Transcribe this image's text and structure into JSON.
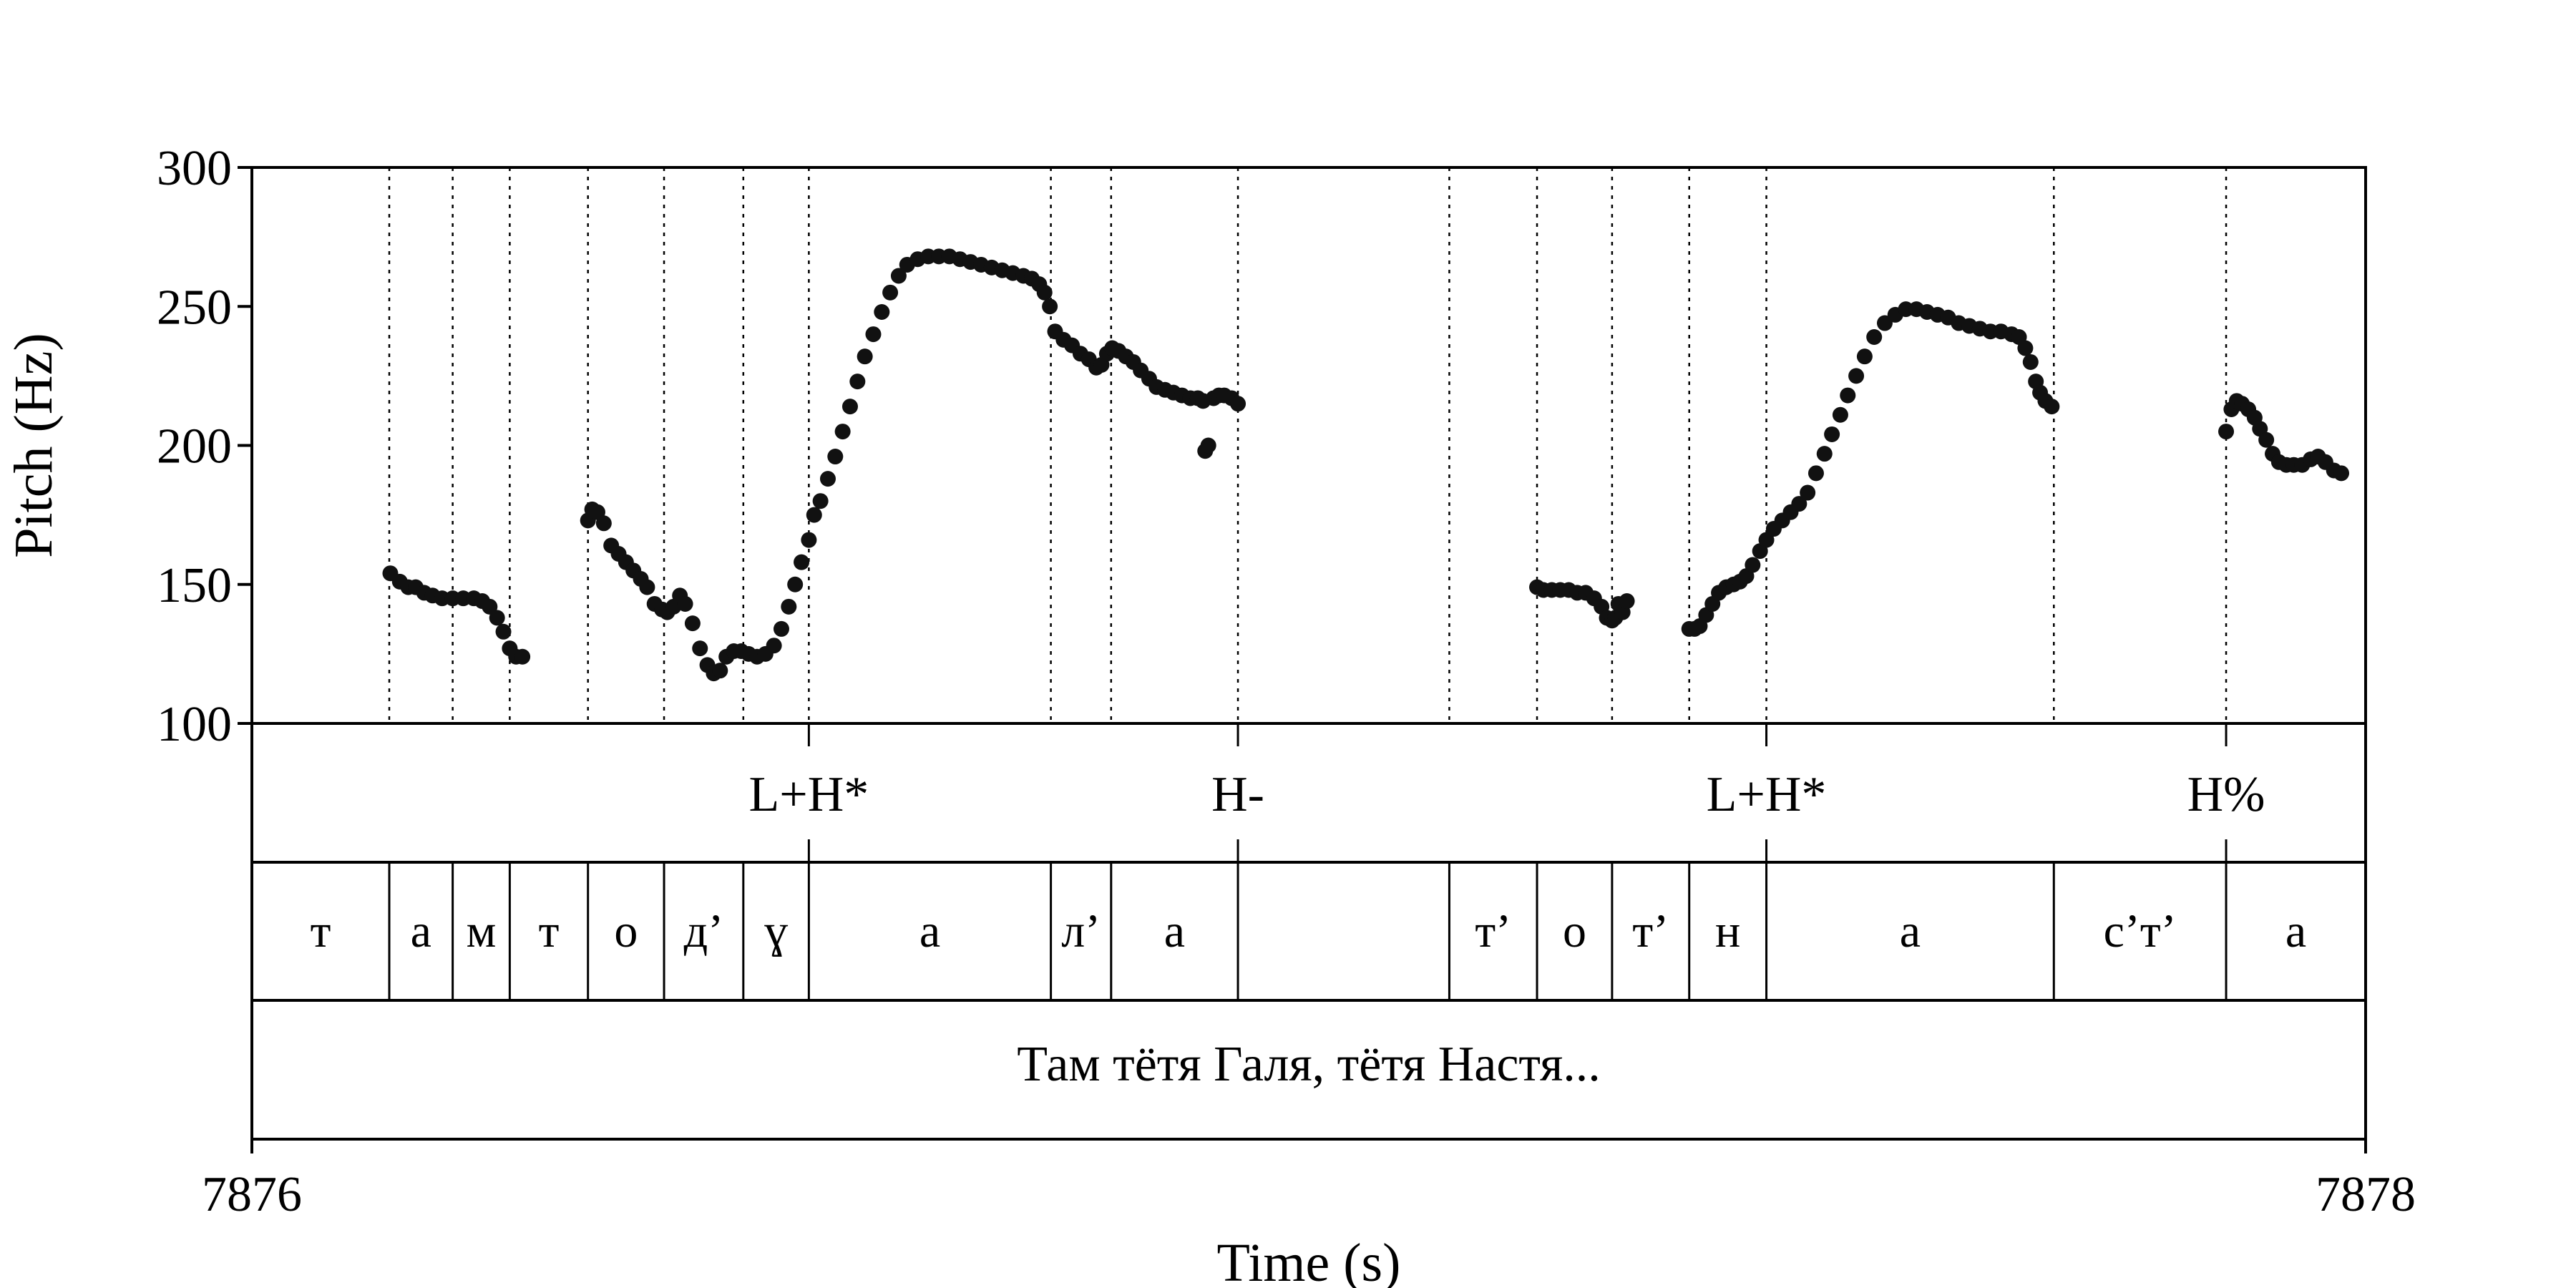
{
  "chart_data": {
    "type": "scatter",
    "ylabel": "Pitch (Hz)",
    "xlabel": "Time (s)",
    "ylim": [
      100,
      300
    ],
    "yticks": [
      100,
      150,
      200,
      250,
      300
    ],
    "xlim": [
      7876,
      7878
    ],
    "xticks": [
      7876,
      7878
    ],
    "grid": false,
    "boundaries": [
      7876.13,
      7876.19,
      7876.244,
      7876.318,
      7876.39,
      7876.465,
      7876.527,
      7876.756,
      7876.813,
      7876.933,
      7877.133,
      7877.216,
      7877.287,
      7877.36,
      7877.433,
      7877.705,
      7877.868
    ],
    "tones": [
      {
        "label": "L+H*",
        "x": 7876.527
      },
      {
        "label": "H-",
        "x": 7876.933
      },
      {
        "label": "L+H*",
        "x": 7877.433
      },
      {
        "label": "H%",
        "x": 7877.868
      }
    ],
    "segments": [
      {
        "label": "т",
        "start": 7876.0,
        "end": 7876.13
      },
      {
        "label": "а",
        "start": 7876.13,
        "end": 7876.19
      },
      {
        "label": "м",
        "start": 7876.19,
        "end": 7876.244
      },
      {
        "label": "т",
        "start": 7876.244,
        "end": 7876.318
      },
      {
        "label": "о",
        "start": 7876.318,
        "end": 7876.39
      },
      {
        "label": "д’",
        "start": 7876.39,
        "end": 7876.465
      },
      {
        "label": "ɣ",
        "start": 7876.465,
        "end": 7876.527
      },
      {
        "label": "а",
        "start": 7876.527,
        "end": 7876.756
      },
      {
        "label": "л’",
        "start": 7876.756,
        "end": 7876.813
      },
      {
        "label": "а",
        "start": 7876.813,
        "end": 7876.933
      },
      {
        "label": "",
        "start": 7876.933,
        "end": 7877.133
      },
      {
        "label": "т’",
        "start": 7877.133,
        "end": 7877.216
      },
      {
        "label": "о",
        "start": 7877.216,
        "end": 7877.287
      },
      {
        "label": "т’",
        "start": 7877.287,
        "end": 7877.36
      },
      {
        "label": "н",
        "start": 7877.36,
        "end": 7877.433
      },
      {
        "label": "а",
        "start": 7877.433,
        "end": 7877.705
      },
      {
        "label": "с’т’",
        "start": 7877.705,
        "end": 7877.868
      },
      {
        "label": "а",
        "start": 7877.868,
        "end": 7878.0
      }
    ],
    "sentence": "Там тётя Галя, тётя Настя...",
    "series": [
      {
        "points": [
          [
            7876.131,
            154
          ],
          [
            7876.14,
            151
          ],
          [
            7876.148,
            149
          ],
          [
            7876.155,
            149
          ],
          [
            7876.163,
            147
          ],
          [
            7876.171,
            146
          ],
          [
            7876.18,
            145
          ],
          [
            7876.19,
            145
          ],
          [
            7876.2,
            145
          ],
          [
            7876.21,
            145
          ],
          [
            7876.218,
            144
          ],
          [
            7876.225,
            142
          ],
          [
            7876.232,
            138
          ],
          [
            7876.238,
            133
          ],
          [
            7876.244,
            127
          ],
          [
            7876.25,
            124
          ],
          [
            7876.256,
            124
          ]
        ]
      },
      {
        "points": [
          [
            7876.318,
            173
          ],
          [
            7876.322,
            177
          ],
          [
            7876.327,
            176
          ],
          [
            7876.333,
            172
          ],
          [
            7876.34,
            164
          ],
          [
            7876.347,
            161
          ],
          [
            7876.354,
            158
          ],
          [
            7876.361,
            155
          ],
          [
            7876.368,
            152
          ],
          [
            7876.374,
            149
          ],
          [
            7876.381,
            143
          ],
          [
            7876.388,
            141
          ],
          [
            7876.393,
            140
          ],
          [
            7876.399,
            142
          ],
          [
            7876.405,
            146
          ],
          [
            7876.41,
            143
          ],
          [
            7876.417,
            136
          ],
          [
            7876.424,
            127
          ],
          [
            7876.431,
            121
          ],
          [
            7876.437,
            118
          ],
          [
            7876.443,
            119
          ],
          [
            7876.449,
            124
          ],
          [
            7876.456,
            126
          ],
          [
            7876.463,
            126
          ],
          [
            7876.47,
            125
          ],
          [
            7876.478,
            124
          ],
          [
            7876.486,
            125
          ],
          [
            7876.494,
            128
          ],
          [
            7876.501,
            134
          ],
          [
            7876.508,
            142
          ],
          [
            7876.514,
            150
          ],
          [
            7876.52,
            158
          ],
          [
            7876.527,
            166
          ],
          [
            7876.532,
            175
          ],
          [
            7876.538,
            180
          ],
          [
            7876.545,
            188
          ],
          [
            7876.552,
            196
          ],
          [
            7876.559,
            205
          ],
          [
            7876.566,
            214
          ],
          [
            7876.573,
            223
          ],
          [
            7876.58,
            232
          ],
          [
            7876.588,
            240
          ],
          [
            7876.596,
            248
          ],
          [
            7876.604,
            255
          ],
          [
            7876.612,
            261
          ],
          [
            7876.62,
            265
          ],
          [
            7876.63,
            267
          ],
          [
            7876.64,
            268
          ],
          [
            7876.65,
            268
          ],
          [
            7876.66,
            268
          ],
          [
            7876.67,
            267
          ],
          [
            7876.68,
            266
          ],
          [
            7876.69,
            265
          ],
          [
            7876.7,
            264
          ],
          [
            7876.71,
            263
          ],
          [
            7876.72,
            262
          ],
          [
            7876.73,
            261
          ],
          [
            7876.738,
            260
          ],
          [
            7876.745,
            258
          ],
          [
            7876.75,
            255
          ],
          [
            7876.755,
            250
          ],
          [
            7876.76,
            241
          ],
          [
            7876.768,
            238
          ],
          [
            7876.776,
            236
          ],
          [
            7876.784,
            233
          ],
          [
            7876.792,
            231
          ],
          [
            7876.799,
            228
          ],
          [
            7876.804,
            229
          ],
          [
            7876.809,
            233
          ],
          [
            7876.814,
            235
          ],
          [
            7876.82,
            234
          ],
          [
            7876.827,
            232
          ],
          [
            7876.834,
            230
          ],
          [
            7876.841,
            227
          ],
          [
            7876.849,
            224
          ],
          [
            7876.856,
            221
          ],
          [
            7876.864,
            220
          ],
          [
            7876.872,
            219
          ],
          [
            7876.88,
            218
          ],
          [
            7876.888,
            217
          ],
          [
            7876.895,
            217
          ],
          [
            7876.9,
            216
          ],
          [
            7876.902,
            198
          ],
          [
            7876.905,
            200
          ],
          [
            7876.91,
            217
          ],
          [
            7876.915,
            218
          ],
          [
            7876.92,
            218
          ],
          [
            7876.927,
            217
          ],
          [
            7876.933,
            215
          ]
        ]
      },
      {
        "points": [
          [
            7877.216,
            149
          ],
          [
            7877.222,
            148
          ],
          [
            7877.23,
            148
          ],
          [
            7877.238,
            148
          ],
          [
            7877.246,
            148
          ],
          [
            7877.254,
            147
          ],
          [
            7877.262,
            147
          ],
          [
            7877.27,
            145
          ],
          [
            7877.277,
            142
          ],
          [
            7877.282,
            138
          ],
          [
            7877.287,
            137
          ],
          [
            7877.29,
            138
          ],
          [
            7877.293,
            143
          ],
          [
            7877.297,
            140
          ],
          [
            7877.301,
            144
          ]
        ]
      },
      {
        "points": [
          [
            7877.36,
            134
          ],
          [
            7877.365,
            134
          ],
          [
            7877.37,
            135
          ],
          [
            7877.376,
            139
          ],
          [
            7877.382,
            143
          ],
          [
            7877.388,
            147
          ],
          [
            7877.395,
            149
          ],
          [
            7877.402,
            150
          ],
          [
            7877.408,
            151
          ],
          [
            7877.414,
            153
          ],
          [
            7877.42,
            157
          ],
          [
            7877.427,
            162
          ],
          [
            7877.433,
            166
          ],
          [
            7877.44,
            170
          ],
          [
            7877.448,
            173
          ],
          [
            7877.456,
            176
          ],
          [
            7877.464,
            179
          ],
          [
            7877.472,
            183
          ],
          [
            7877.48,
            190
          ],
          [
            7877.488,
            197
          ],
          [
            7877.495,
            204
          ],
          [
            7877.503,
            211
          ],
          [
            7877.51,
            218
          ],
          [
            7877.518,
            225
          ],
          [
            7877.526,
            232
          ],
          [
            7877.535,
            239
          ],
          [
            7877.545,
            244
          ],
          [
            7877.555,
            247
          ],
          [
            7877.565,
            249
          ],
          [
            7877.575,
            249
          ],
          [
            7877.585,
            248
          ],
          [
            7877.595,
            247
          ],
          [
            7877.605,
            246
          ],
          [
            7877.615,
            244
          ],
          [
            7877.625,
            243
          ],
          [
            7877.635,
            242
          ],
          [
            7877.645,
            241
          ],
          [
            7877.655,
            241
          ],
          [
            7877.665,
            240
          ],
          [
            7877.672,
            239
          ],
          [
            7877.678,
            235
          ],
          [
            7877.683,
            230
          ],
          [
            7877.688,
            223
          ],
          [
            7877.692,
            219
          ],
          [
            7877.697,
            216
          ],
          [
            7877.703,
            214
          ]
        ]
      },
      {
        "points": [
          [
            7877.868,
            205
          ],
          [
            7877.873,
            213
          ],
          [
            7877.878,
            216
          ],
          [
            7877.883,
            215
          ],
          [
            7877.889,
            213
          ],
          [
            7877.895,
            210
          ],
          [
            7877.9,
            206
          ],
          [
            7877.906,
            202
          ],
          [
            7877.912,
            197
          ],
          [
            7877.918,
            194
          ],
          [
            7877.925,
            193
          ],
          [
            7877.932,
            193
          ],
          [
            7877.94,
            193
          ],
          [
            7877.948,
            195
          ],
          [
            7877.955,
            196
          ],
          [
            7877.962,
            194
          ],
          [
            7877.97,
            191
          ],
          [
            7877.977,
            190
          ]
        ]
      }
    ]
  }
}
